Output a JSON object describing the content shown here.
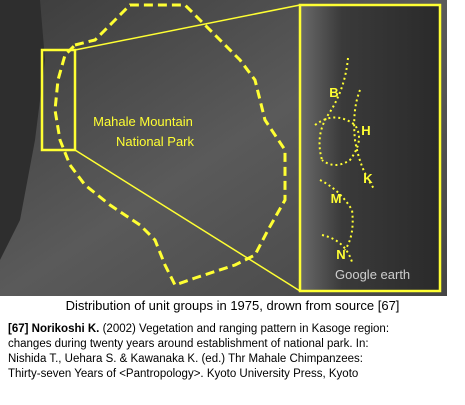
{
  "map": {
    "title_lines": [
      "Mahale Mountain",
      "National Park"
    ],
    "group_labels": [
      "B",
      "H",
      "K",
      "M",
      "N"
    ],
    "watermark": "Google earth"
  },
  "caption": "Distribution of unit groups in 1975, drown from source [67]",
  "reference": {
    "tag": "[67] Norikoshi K.",
    "lines": [
      "(2002) Vegetation and ranging pattern in Kasoge region:",
      "changes during twenty years around establishment of national park. In:",
      "Nishida T., Uehara S. & Kawanaka K. (ed.) Thr Mahale Chimpanzees:",
      "Thirty-seven  Years of <Pantropology>. Kyoto University Press, Kyoto"
    ]
  }
}
